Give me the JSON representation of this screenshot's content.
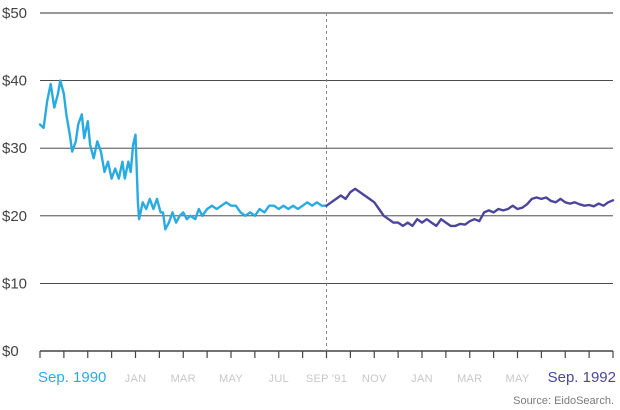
{
  "source_note": "Source: EidoSearch.",
  "colors": {
    "series_1": "#29abe2",
    "series_2": "#4b4699",
    "grid": "#333333",
    "tick_label": "#c8c8c8"
  },
  "chart_data": {
    "type": "line",
    "y_axis": {
      "ticks": [
        "$0",
        "$10",
        "$20",
        "$30",
        "$40",
        "$50"
      ],
      "tick_values": [
        0,
        10,
        20,
        30,
        40,
        50
      ],
      "ylim": [
        0,
        50
      ]
    },
    "x_axis": {
      "xlim": [
        0,
        24
      ],
      "ticks": [
        {
          "label": "Sep. 1990",
          "x": 0
        },
        {
          "label": "JAN",
          "x": 4
        },
        {
          "label": "MAR",
          "x": 6
        },
        {
          "label": "MAY",
          "x": 8
        },
        {
          "label": "JUL",
          "x": 10
        },
        {
          "label": "SEP '91",
          "x": 12
        },
        {
          "label": "NOV",
          "x": 14
        },
        {
          "label": "JAN",
          "x": 16
        },
        {
          "label": "MAR",
          "x": 18
        },
        {
          "label": "MAY",
          "x": 20
        },
        {
          "label": "Sep. 1992",
          "x": 24
        }
      ],
      "x_units": "months since Sep. 1990",
      "divider_at": 12
    },
    "grid": true,
    "series": [
      {
        "values": [
          [
            0.0,
            33.5
          ],
          [
            0.15,
            33
          ],
          [
            0.3,
            37
          ],
          [
            0.45,
            39.5
          ],
          [
            0.6,
            36
          ],
          [
            0.75,
            38
          ],
          [
            0.85,
            40
          ],
          [
            1.0,
            38
          ],
          [
            1.1,
            35
          ],
          [
            1.25,
            32
          ],
          [
            1.35,
            29.5
          ],
          [
            1.5,
            31
          ],
          [
            1.6,
            33.5
          ],
          [
            1.75,
            35
          ],
          [
            1.85,
            31.5
          ],
          [
            2.0,
            34
          ],
          [
            2.1,
            30.5
          ],
          [
            2.25,
            28.5
          ],
          [
            2.4,
            31
          ],
          [
            2.55,
            29.5
          ],
          [
            2.7,
            26.5
          ],
          [
            2.85,
            28
          ],
          [
            3.0,
            25.5
          ],
          [
            3.15,
            27
          ],
          [
            3.3,
            25.5
          ],
          [
            3.45,
            28
          ],
          [
            3.55,
            25.5
          ],
          [
            3.7,
            28
          ],
          [
            3.8,
            26.5
          ],
          [
            3.9,
            30.5
          ],
          [
            4.0,
            32
          ],
          [
            4.05,
            27
          ],
          [
            4.1,
            22
          ],
          [
            4.15,
            19.5
          ],
          [
            4.3,
            22
          ],
          [
            4.45,
            21
          ],
          [
            4.6,
            22.5
          ],
          [
            4.75,
            21
          ],
          [
            4.9,
            22.5
          ],
          [
            5.05,
            20.5
          ],
          [
            5.15,
            20.5
          ],
          [
            5.25,
            18
          ],
          [
            5.4,
            19
          ],
          [
            5.55,
            20.5
          ],
          [
            5.7,
            19
          ],
          [
            5.85,
            20
          ],
          [
            6.0,
            20.5
          ],
          [
            6.15,
            19.5
          ],
          [
            6.3,
            20
          ],
          [
            6.5,
            19.5
          ],
          [
            6.65,
            21
          ],
          [
            6.8,
            20
          ],
          [
            7.0,
            21
          ],
          [
            7.2,
            21.5
          ],
          [
            7.4,
            21
          ],
          [
            7.6,
            21.5
          ],
          [
            7.8,
            22
          ],
          [
            8.0,
            21.5
          ],
          [
            8.2,
            21.5
          ],
          [
            8.4,
            20.5
          ],
          [
            8.6,
            20
          ],
          [
            8.8,
            20.5
          ],
          [
            9.0,
            20
          ],
          [
            9.2,
            21
          ],
          [
            9.4,
            20.5
          ],
          [
            9.6,
            21.5
          ],
          [
            9.8,
            21.5
          ],
          [
            10.0,
            21
          ],
          [
            10.2,
            21.5
          ],
          [
            10.4,
            21
          ],
          [
            10.6,
            21.5
          ],
          [
            10.8,
            21
          ],
          [
            11.0,
            21.5
          ],
          [
            11.2,
            22
          ],
          [
            11.4,
            21.5
          ],
          [
            11.6,
            22
          ],
          [
            11.8,
            21.5
          ],
          [
            12.0,
            21.5
          ]
        ]
      },
      {
        "values": [
          [
            12.0,
            21.5
          ],
          [
            12.2,
            22
          ],
          [
            12.4,
            22.5
          ],
          [
            12.6,
            23
          ],
          [
            12.8,
            22.5
          ],
          [
            13.0,
            23.5
          ],
          [
            13.2,
            24
          ],
          [
            13.4,
            23.5
          ],
          [
            13.6,
            23
          ],
          [
            13.8,
            22.5
          ],
          [
            14.0,
            22
          ],
          [
            14.2,
            21
          ],
          [
            14.4,
            20
          ],
          [
            14.6,
            19.5
          ],
          [
            14.8,
            19
          ],
          [
            15.0,
            19
          ],
          [
            15.2,
            18.5
          ],
          [
            15.4,
            19
          ],
          [
            15.6,
            18.5
          ],
          [
            15.8,
            19.5
          ],
          [
            16.0,
            19
          ],
          [
            16.2,
            19.5
          ],
          [
            16.4,
            19
          ],
          [
            16.6,
            18.5
          ],
          [
            16.8,
            19.5
          ],
          [
            17.0,
            19
          ],
          [
            17.2,
            18.5
          ],
          [
            17.4,
            18.5
          ],
          [
            17.6,
            18.8
          ],
          [
            17.8,
            18.7
          ],
          [
            18.0,
            19.2
          ],
          [
            18.2,
            19.5
          ],
          [
            18.4,
            19.2
          ],
          [
            18.6,
            20.5
          ],
          [
            18.8,
            20.8
          ],
          [
            19.0,
            20.5
          ],
          [
            19.2,
            21
          ],
          [
            19.4,
            20.8
          ],
          [
            19.6,
            21
          ],
          [
            19.8,
            21.5
          ],
          [
            20.0,
            21
          ],
          [
            20.2,
            21.2
          ],
          [
            20.4,
            21.7
          ],
          [
            20.6,
            22.5
          ],
          [
            20.8,
            22.7
          ],
          [
            21.0,
            22.5
          ],
          [
            21.2,
            22.7
          ],
          [
            21.4,
            22.2
          ],
          [
            21.6,
            22
          ],
          [
            21.8,
            22.5
          ],
          [
            22.0,
            22
          ],
          [
            22.2,
            21.8
          ],
          [
            22.4,
            22
          ],
          [
            22.6,
            21.7
          ],
          [
            22.8,
            21.5
          ],
          [
            23.0,
            21.6
          ],
          [
            23.2,
            21.4
          ],
          [
            23.4,
            21.8
          ],
          [
            23.6,
            21.5
          ],
          [
            23.8,
            22
          ],
          [
            24.0,
            22.3
          ]
        ]
      }
    ]
  }
}
